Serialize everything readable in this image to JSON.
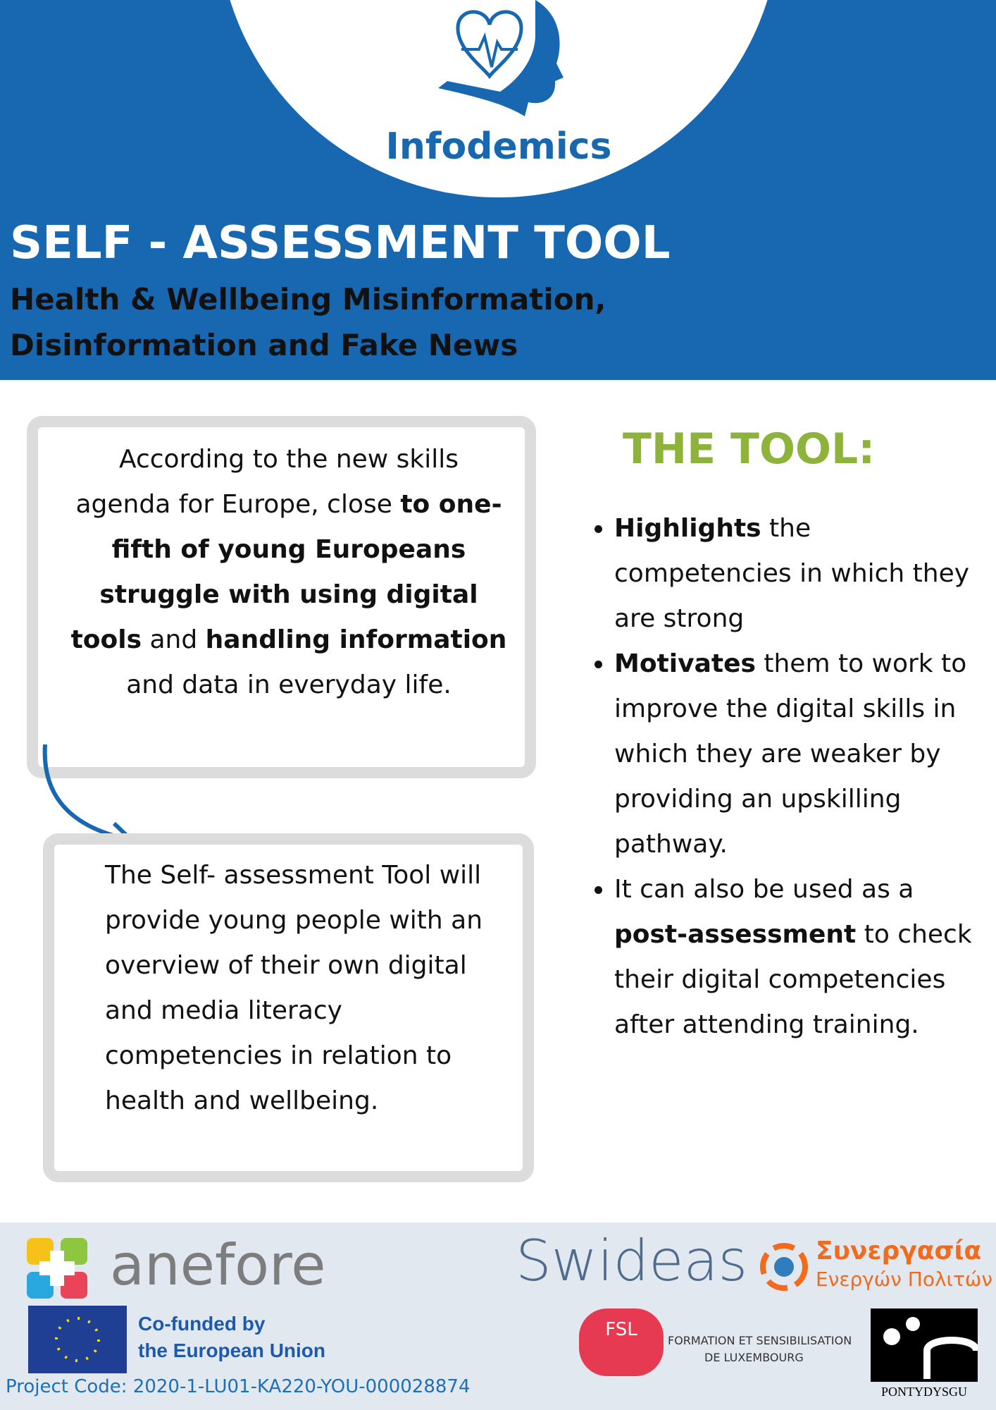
{
  "header": {
    "logo_text": "Infodemics",
    "title": "SELF - ASSESSMENT TOOL",
    "subtitle_lines": [
      "Health & Wellbeing Misinformation,",
      "Disinformation and Fake News"
    ]
  },
  "box1": {
    "runs": [
      {
        "text": "According to the new skills agenda for Europe, close ",
        "bold": false
      },
      {
        "text": "to one-fifth of young Europeans struggle with using digital tools",
        "bold": true
      },
      {
        "text": " and ",
        "bold": false
      },
      {
        "text": "handling information",
        "bold": true
      },
      {
        "text": " and data in everyday life.",
        "bold": false
      }
    ]
  },
  "box2": {
    "text": "The Self- assessment Tool will provide young people with an overview of their own digital and media literacy competencies in relation to health and wellbeing."
  },
  "tool": {
    "heading": "THE TOOL:",
    "bullets": [
      {
        "runs": [
          {
            "text": "Highlights",
            "bold": true
          },
          {
            "text": " the competencies in which they are strong",
            "bold": false
          }
        ]
      },
      {
        "runs": [
          {
            "text": "Motivates",
            "bold": true
          },
          {
            "text": " them to work to improve the digital skills in which they are weaker by providing an upskilling pathway.",
            "bold": false
          }
        ]
      },
      {
        "runs": [
          {
            "text": "It can also be used as a ",
            "bold": false
          },
          {
            "text": "post-assessment",
            "bold": true
          },
          {
            "text": " to check their digital competencies after attending training.",
            "bold": false
          }
        ]
      }
    ]
  },
  "footer": {
    "anefore": "anefore",
    "swideas": "Swideas",
    "synergasia_1": "Συνεργασία",
    "synergasia_2": "Ενεργών Πολιτών",
    "eu_1": "Co-funded by",
    "eu_2": "the European Union",
    "fsl": "FSL",
    "fsl_1": "FORMATION ET SENSIBILISATION",
    "fsl_2": "DE LUXEMBOURG",
    "pontydysgu": "PONTYDYSGU",
    "project_code": "Project Code: 2020-1-LU01-KA220-YOU-000028874"
  }
}
